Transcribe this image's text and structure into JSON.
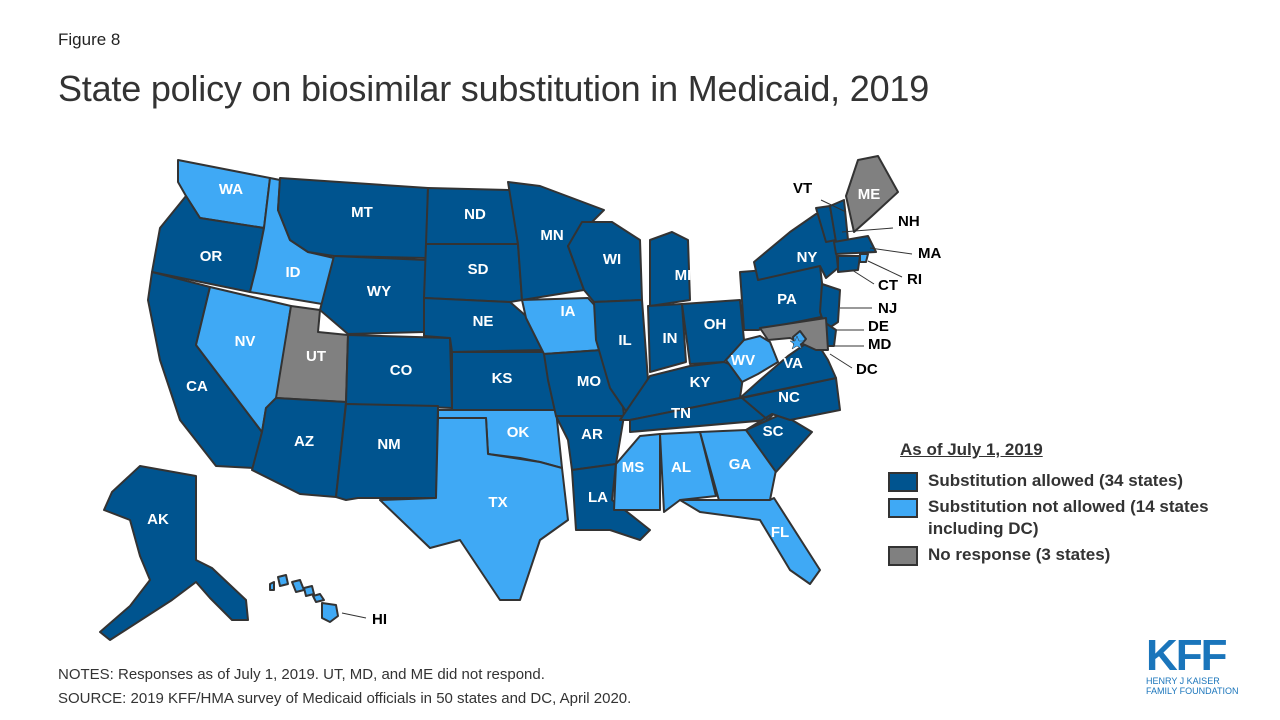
{
  "figure_label": "Figure 8",
  "title": "State policy on biosimilar substitution in Medicaid, 2019",
  "colors": {
    "allowed": "#00548f",
    "not_allowed": "#3fa9f5",
    "no_response": "#808080",
    "border": "#333333"
  },
  "legend": {
    "title": "As of July 1, 2019",
    "items": [
      {
        "key": "allowed",
        "label": "Substitution allowed (34 states)"
      },
      {
        "key": "not_allowed",
        "label": "Substitution not allowed (14 states including DC)"
      },
      {
        "key": "no_response",
        "label": "No response (3 states)"
      }
    ]
  },
  "states": {
    "WA": "not_allowed",
    "OR": "allowed",
    "CA": "allowed",
    "ID": "not_allowed",
    "NV": "not_allowed",
    "UT": "no_response",
    "AZ": "allowed",
    "MT": "allowed",
    "WY": "allowed",
    "CO": "allowed",
    "NM": "allowed",
    "ND": "allowed",
    "SD": "allowed",
    "NE": "allowed",
    "KS": "allowed",
    "OK": "not_allowed",
    "TX": "not_allowed",
    "MN": "allowed",
    "IA": "not_allowed",
    "MO": "allowed",
    "AR": "allowed",
    "LA": "allowed",
    "WI": "allowed",
    "IL": "allowed",
    "MI": "allowed",
    "IN": "allowed",
    "OH": "allowed",
    "KY": "allowed",
    "TN": "allowed",
    "MS": "not_allowed",
    "AL": "not_allowed",
    "GA": "not_allowed",
    "FL": "not_allowed",
    "SC": "allowed",
    "NC": "allowed",
    "VA": "allowed",
    "WV": "not_allowed",
    "PA": "allowed",
    "NY": "allowed",
    "VT": "allowed",
    "NH": "allowed",
    "ME": "no_response",
    "MA": "allowed",
    "RI": "not_allowed",
    "CT": "allowed",
    "NJ": "allowed",
    "DE": "allowed",
    "MD": "no_response",
    "DC": "not_allowed",
    "AK": "allowed",
    "HI": "not_allowed"
  },
  "notes": "NOTES: Responses as of July 1, 2019. UT, MD, and ME did not respond.",
  "source": "SOURCE: 2019 KFF/HMA survey of Medicaid officials in 50 states and DC, April 2020.",
  "logo": {
    "name": "KFF",
    "line1": "HENRY J KAISER",
    "line2": "FAMILY FOUNDATION"
  }
}
